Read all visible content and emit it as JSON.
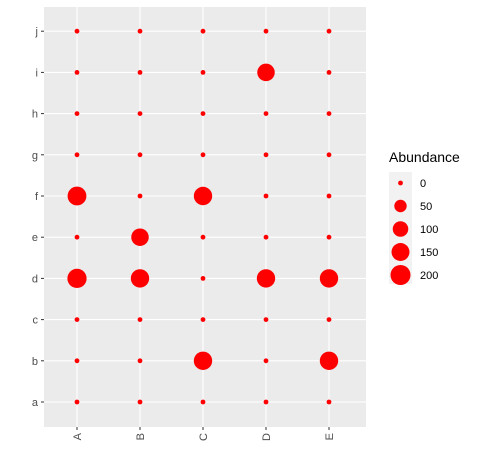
{
  "chart_data": {
    "type": "scatter",
    "x_categories": [
      "A",
      "B",
      "C",
      "D",
      "E"
    ],
    "y_categories": [
      "a",
      "b",
      "c",
      "d",
      "e",
      "f",
      "g",
      "h",
      "i",
      "j"
    ],
    "size_variable": "Abundance",
    "points": [
      {
        "x": "A",
        "y": "a",
        "abundance": 0
      },
      {
        "x": "B",
        "y": "a",
        "abundance": 0
      },
      {
        "x": "C",
        "y": "a",
        "abundance": 0
      },
      {
        "x": "D",
        "y": "a",
        "abundance": 0
      },
      {
        "x": "E",
        "y": "a",
        "abundance": 0
      },
      {
        "x": "A",
        "y": "b",
        "abundance": 0
      },
      {
        "x": "B",
        "y": "b",
        "abundance": 0
      },
      {
        "x": "C",
        "y": "b",
        "abundance": 160
      },
      {
        "x": "D",
        "y": "b",
        "abundance": 0
      },
      {
        "x": "E",
        "y": "b",
        "abundance": 160
      },
      {
        "x": "A",
        "y": "c",
        "abundance": 0
      },
      {
        "x": "B",
        "y": "c",
        "abundance": 0
      },
      {
        "x": "C",
        "y": "c",
        "abundance": 0
      },
      {
        "x": "D",
        "y": "c",
        "abundance": 0
      },
      {
        "x": "E",
        "y": "c",
        "abundance": 0
      },
      {
        "x": "A",
        "y": "d",
        "abundance": 180
      },
      {
        "x": "B",
        "y": "d",
        "abundance": 160
      },
      {
        "x": "C",
        "y": "d",
        "abundance": 0
      },
      {
        "x": "D",
        "y": "d",
        "abundance": 160
      },
      {
        "x": "E",
        "y": "d",
        "abundance": 160
      },
      {
        "x": "A",
        "y": "e",
        "abundance": 0
      },
      {
        "x": "B",
        "y": "e",
        "abundance": 140
      },
      {
        "x": "C",
        "y": "e",
        "abundance": 0
      },
      {
        "x": "D",
        "y": "e",
        "abundance": 0
      },
      {
        "x": "E",
        "y": "e",
        "abundance": 0
      },
      {
        "x": "A",
        "y": "f",
        "abundance": 170
      },
      {
        "x": "B",
        "y": "f",
        "abundance": 0
      },
      {
        "x": "C",
        "y": "f",
        "abundance": 160
      },
      {
        "x": "D",
        "y": "f",
        "abundance": 0
      },
      {
        "x": "E",
        "y": "f",
        "abundance": 0
      },
      {
        "x": "A",
        "y": "g",
        "abundance": 0
      },
      {
        "x": "B",
        "y": "g",
        "abundance": 0
      },
      {
        "x": "C",
        "y": "g",
        "abundance": 0
      },
      {
        "x": "D",
        "y": "g",
        "abundance": 0
      },
      {
        "x": "E",
        "y": "g",
        "abundance": 0
      },
      {
        "x": "A",
        "y": "h",
        "abundance": 0
      },
      {
        "x": "B",
        "y": "h",
        "abundance": 0
      },
      {
        "x": "C",
        "y": "h",
        "abundance": 0
      },
      {
        "x": "D",
        "y": "h",
        "abundance": 0
      },
      {
        "x": "E",
        "y": "h",
        "abundance": 0
      },
      {
        "x": "A",
        "y": "i",
        "abundance": 0
      },
      {
        "x": "B",
        "y": "i",
        "abundance": 0
      },
      {
        "x": "C",
        "y": "i",
        "abundance": 0
      },
      {
        "x": "D",
        "y": "i",
        "abundance": 140
      },
      {
        "x": "E",
        "y": "i",
        "abundance": 0
      },
      {
        "x": "A",
        "y": "j",
        "abundance": 0
      },
      {
        "x": "B",
        "y": "j",
        "abundance": 0
      },
      {
        "x": "C",
        "y": "j",
        "abundance": 0
      },
      {
        "x": "D",
        "y": "j",
        "abundance": 0
      },
      {
        "x": "E",
        "y": "j",
        "abundance": 0
      }
    ],
    "legend": {
      "title": "Abundance",
      "position": "right",
      "breaks": [
        0,
        50,
        100,
        150,
        200
      ],
      "labels": [
        "0",
        "50",
        "100",
        "150",
        "200"
      ]
    },
    "point_color": "#ff0000",
    "panel_background": "#ebebeb",
    "grid_color": "#ffffff",
    "grid": true,
    "x_tick_rotation": "vertical"
  }
}
